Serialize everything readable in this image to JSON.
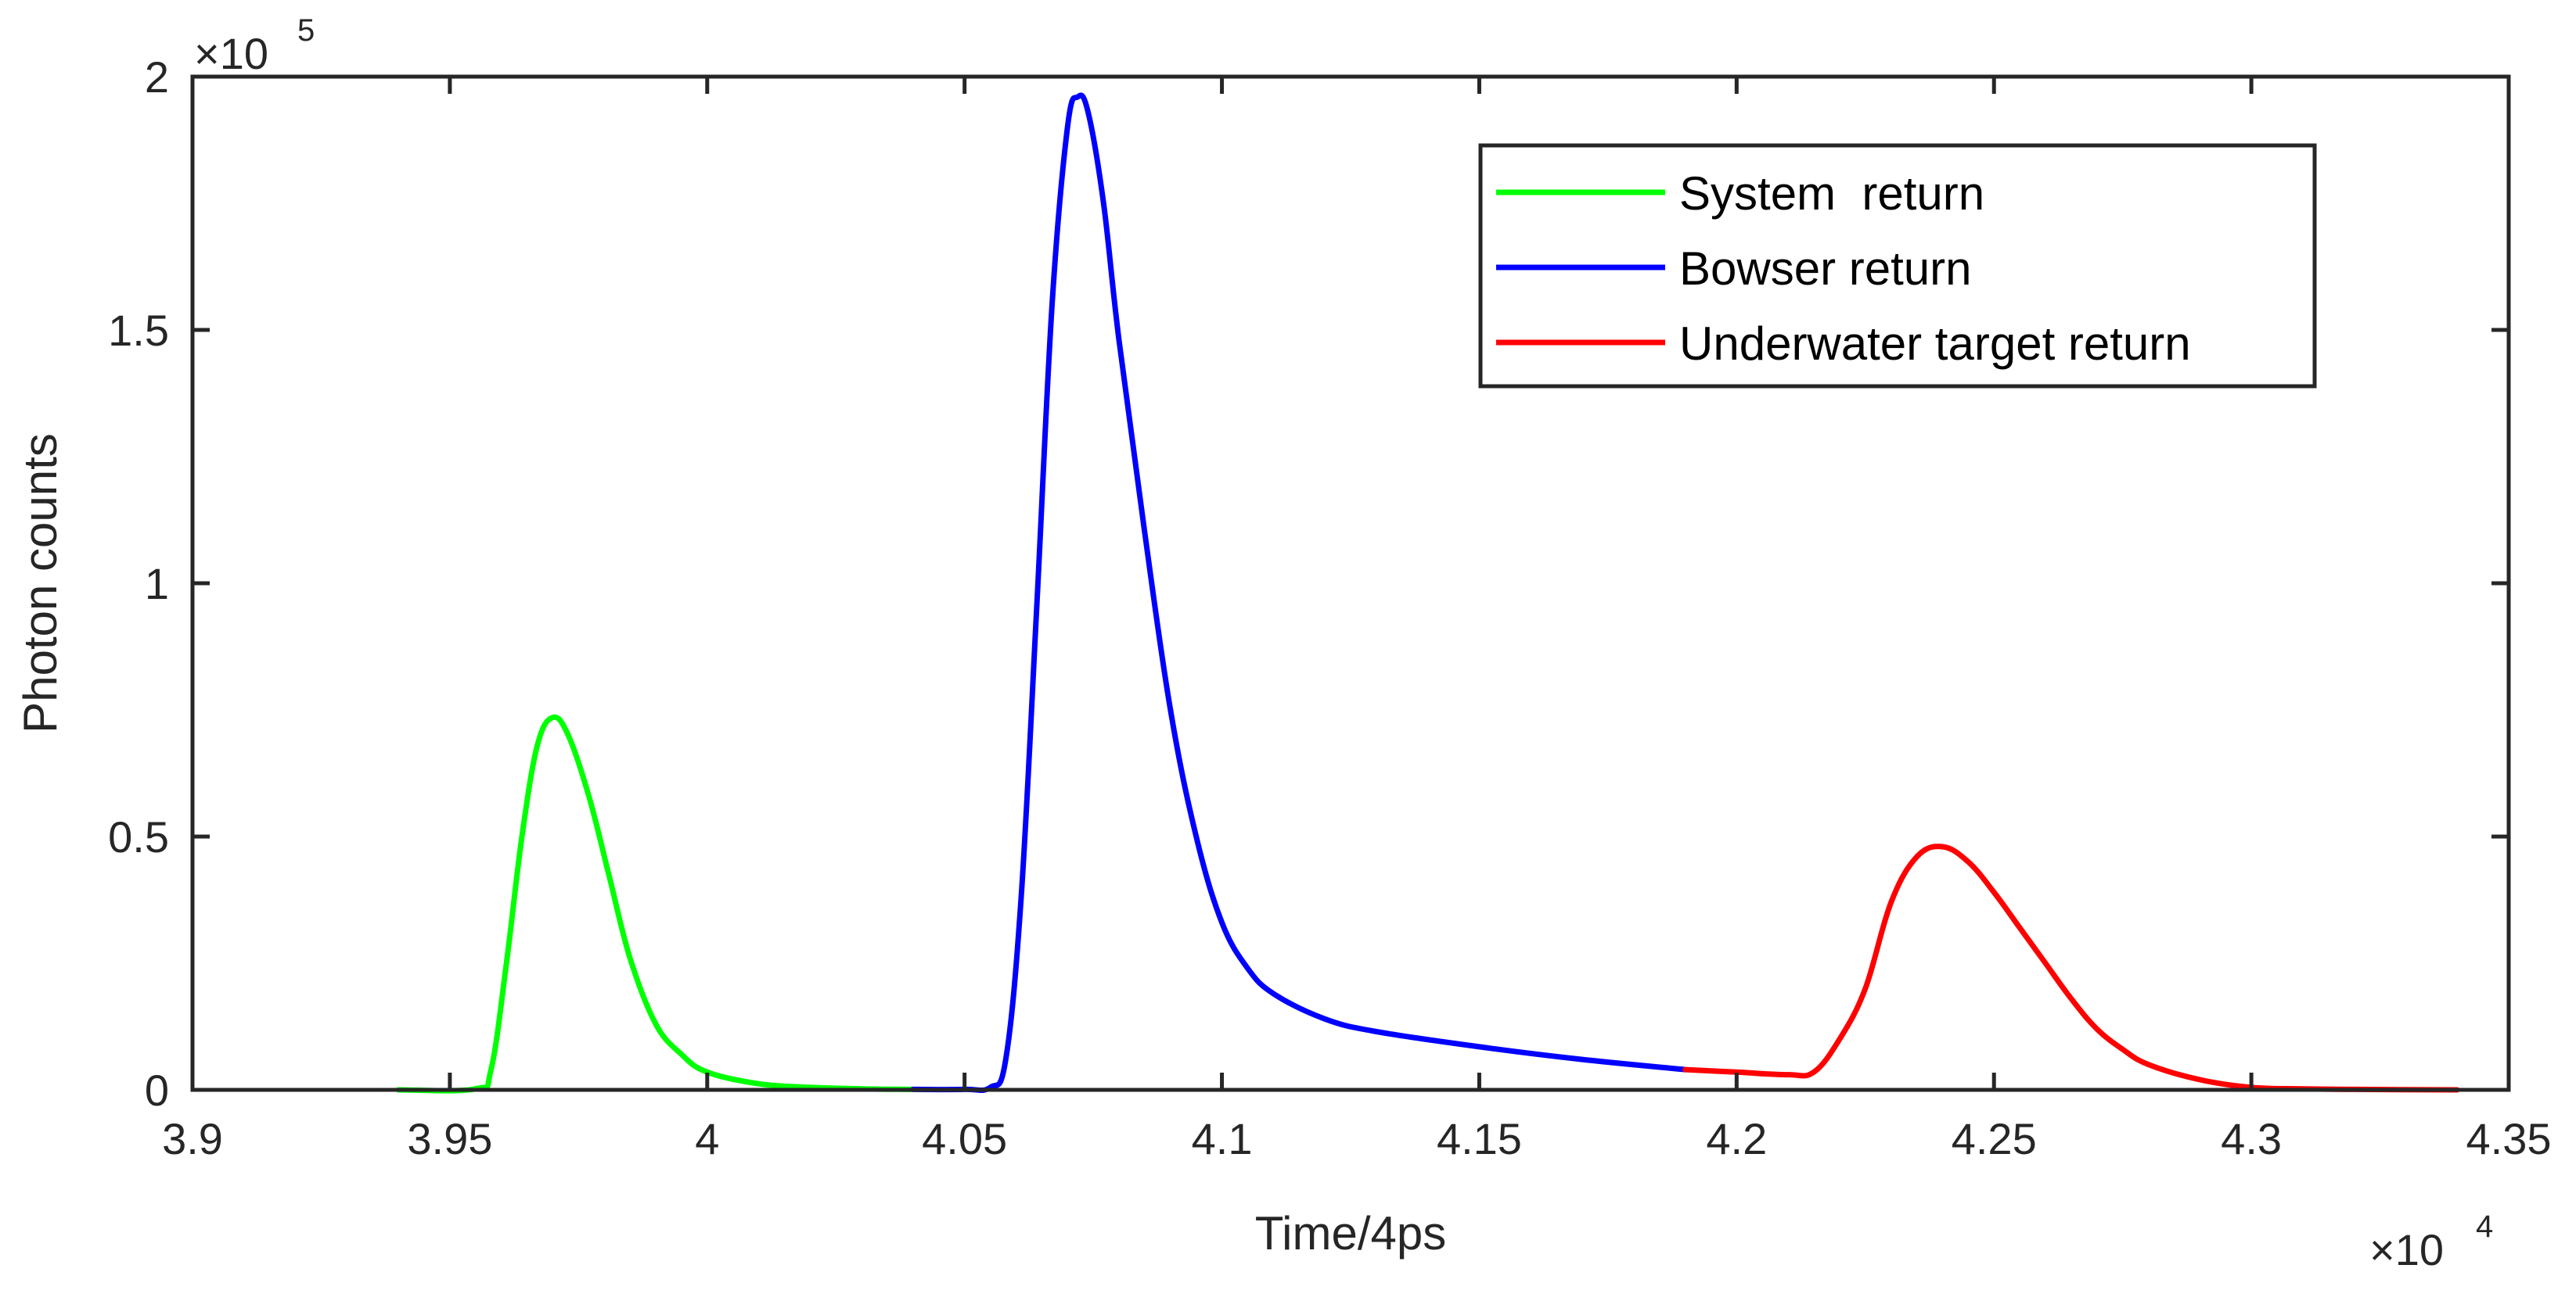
{
  "chart_data": {
    "type": "line",
    "title": "",
    "xlabel": "Time/4ps",
    "ylabel": "Photon counts",
    "x_multiplier": {
      "base": "×10",
      "exponent": "4"
    },
    "y_multiplier": {
      "base": "×10",
      "exponent": "5"
    },
    "xlim": [
      3.9,
      4.35
    ],
    "ylim": [
      0,
      2
    ],
    "x_ticks": [
      {
        "value": 3.9,
        "label": "3.9"
      },
      {
        "value": 3.95,
        "label": "3.95"
      },
      {
        "value": 4.0,
        "label": "4"
      },
      {
        "value": 4.05,
        "label": "4.05"
      },
      {
        "value": 4.1,
        "label": "4.1"
      },
      {
        "value": 4.15,
        "label": "4.15"
      },
      {
        "value": 4.2,
        "label": "4.2"
      },
      {
        "value": 4.25,
        "label": "4.25"
      },
      {
        "value": 4.3,
        "label": "4.3"
      },
      {
        "value": 4.35,
        "label": "4.35"
      }
    ],
    "y_ticks": [
      {
        "value": 0,
        "label": "0"
      },
      {
        "value": 0.5,
        "label": "0.5"
      },
      {
        "value": 1.0,
        "label": "1"
      },
      {
        "value": 1.5,
        "label": "1.5"
      },
      {
        "value": 2.0,
        "label": "2"
      }
    ],
    "grid": false,
    "legend_position": "top-right",
    "series": [
      {
        "name": "System  return",
        "color": "#00ff00",
        "x": [
          3.94,
          3.955,
          3.958,
          3.961,
          3.964,
          3.967,
          3.97,
          3.973,
          3.977,
          3.981,
          3.985,
          3.99,
          3.995,
          4.0,
          4.01,
          4.02,
          4.03,
          4.04
        ],
        "y": [
          0.0,
          0.002,
          0.04,
          0.25,
          0.5,
          0.68,
          0.735,
          0.7,
          0.58,
          0.42,
          0.26,
          0.13,
          0.07,
          0.035,
          0.012,
          0.005,
          0.002,
          0.001
        ]
      },
      {
        "name": "Bowser return",
        "color": "#0000ff",
        "x": [
          4.04,
          4.05,
          4.055,
          4.058,
          4.061,
          4.064,
          4.067,
          4.07,
          4.072,
          4.074,
          4.077,
          4.08,
          4.085,
          4.09,
          4.095,
          4.1,
          4.105,
          4.11,
          4.12,
          4.13,
          4.15,
          4.17,
          4.19
        ],
        "y": [
          0.001,
          0.001,
          0.005,
          0.06,
          0.38,
          0.95,
          1.55,
          1.9,
          1.96,
          1.93,
          1.75,
          1.48,
          1.1,
          0.75,
          0.5,
          0.33,
          0.24,
          0.19,
          0.14,
          0.115,
          0.085,
          0.06,
          0.04
        ]
      },
      {
        "name": "Underwater target return",
        "color": "#ff0000",
        "x": [
          4.19,
          4.2,
          4.21,
          4.215,
          4.22,
          4.225,
          4.23,
          4.235,
          4.24,
          4.245,
          4.25,
          4.255,
          4.26,
          4.265,
          4.27,
          4.275,
          4.28,
          4.29,
          4.3,
          4.31,
          4.32,
          4.34
        ],
        "y": [
          0.04,
          0.035,
          0.03,
          0.035,
          0.1,
          0.2,
          0.37,
          0.46,
          0.48,
          0.45,
          0.39,
          0.32,
          0.25,
          0.18,
          0.12,
          0.08,
          0.05,
          0.02,
          0.005,
          0.002,
          0.001,
          0.0
        ]
      }
    ]
  }
}
